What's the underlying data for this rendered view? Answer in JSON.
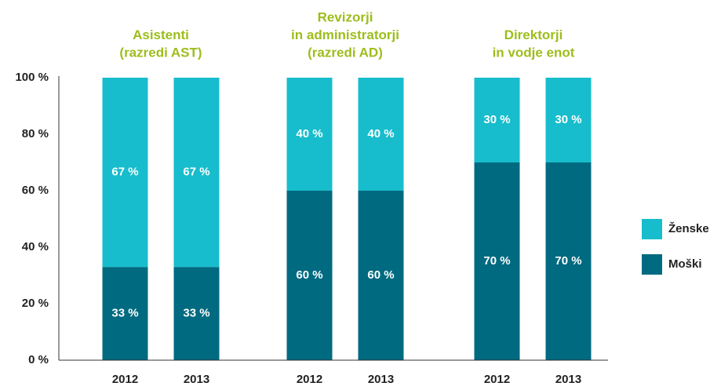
{
  "chart_data": {
    "type": "bar",
    "stacked": true,
    "groups": [
      {
        "label": [
          "Asistenti",
          "(razredi AST)"
        ],
        "categories": [
          "2012",
          "2013"
        ]
      },
      {
        "label": [
          "Revizorji",
          "in administratorji",
          "(razredi AD)"
        ],
        "categories": [
          "2012",
          "2013"
        ]
      },
      {
        "label": [
          "Direktorji",
          "in vodje enot"
        ],
        "categories": [
          "2012",
          "2013"
        ]
      }
    ],
    "group_label_color": "#9dbd1c",
    "series": [
      {
        "name": "Moški",
        "color": "#006a80",
        "values": [
          33,
          33,
          60,
          60,
          70,
          70
        ],
        "value_labels": [
          "33 %",
          "33 %",
          "60 %",
          "60 %",
          "70 %",
          "70 %"
        ]
      },
      {
        "name": "Ženske",
        "color": "#17bdcc",
        "values": [
          67,
          67,
          40,
          40,
          30,
          30
        ],
        "value_labels": [
          "67 %",
          "67 %",
          "40 %",
          "40 %",
          "30 %",
          "30 %"
        ]
      }
    ],
    "ylim": [
      0,
      100
    ],
    "yticks": [
      {
        "value": 0,
        "label": "0 %"
      },
      {
        "value": 20,
        "label": "20 %"
      },
      {
        "value": 40,
        "label": "40 %"
      },
      {
        "value": 60,
        "label": "60 %"
      },
      {
        "value": 80,
        "label": "80 %"
      },
      {
        "value": 100,
        "label": "100 %"
      }
    ],
    "grid": false,
    "legend": "right"
  }
}
